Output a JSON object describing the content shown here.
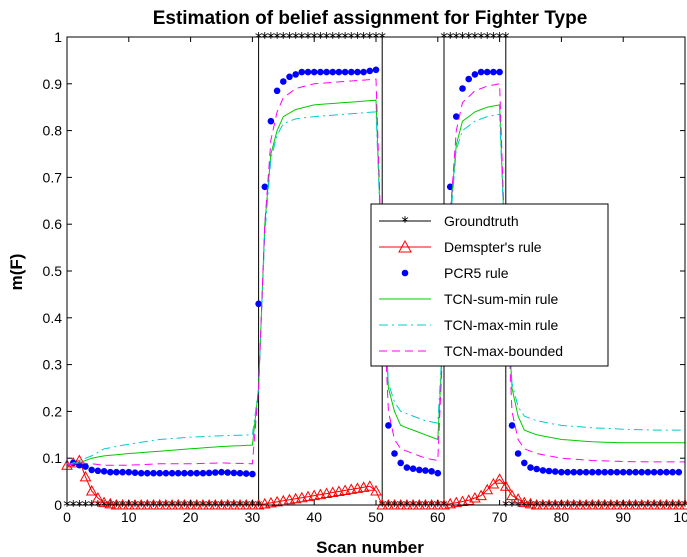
{
  "chart_data": {
    "type": "line",
    "title": "Estimation of belief assignment for Fighter Type",
    "xlabel": "Scan number",
    "ylabel": "m(F)",
    "xlim": [
      0,
      100
    ],
    "ylim": [
      0,
      1
    ],
    "xticks": [
      0,
      10,
      20,
      30,
      40,
      50,
      60,
      70,
      80,
      90,
      100
    ],
    "yticks": [
      0,
      0.1,
      0.2,
      0.3,
      0.4,
      0.5,
      0.6,
      0.7,
      0.8,
      0.9,
      1
    ],
    "grid": false,
    "legend_position": "center-right",
    "series": [
      {
        "name": "Groundtruth",
        "color": "#000000",
        "style": "solid+star",
        "segments": [
          {
            "x": [
              0,
              31
            ],
            "y": 0
          },
          {
            "x": [
              31,
              51
            ],
            "y": 1
          },
          {
            "x": [
              51,
              61
            ],
            "y": 0
          },
          {
            "x": [
              61,
              71
            ],
            "y": 1
          },
          {
            "x": [
              71,
              100
            ],
            "y": 0
          }
        ]
      },
      {
        "name": "Demspter's rule",
        "color": "#ff0000",
        "style": "solid+triangle",
        "points": [
          [
            0,
            0.085
          ],
          [
            1,
            0.09
          ],
          [
            2,
            0.095
          ],
          [
            3,
            0.06
          ],
          [
            4,
            0.03
          ],
          [
            5,
            0.015
          ],
          [
            6,
            0.005
          ],
          [
            8,
            0.0
          ],
          [
            30,
            0.0
          ],
          [
            31,
            0.0
          ],
          [
            49,
            0.04
          ],
          [
            50,
            0.03
          ],
          [
            51,
            0.0
          ],
          [
            60,
            0.0
          ],
          [
            61,
            0.0
          ],
          [
            65,
            0.01
          ],
          [
            67,
            0.02
          ],
          [
            69,
            0.045
          ],
          [
            70,
            0.055
          ],
          [
            71,
            0.04
          ],
          [
            72,
            0.02
          ],
          [
            74,
            0.005
          ],
          [
            76,
            0.0
          ],
          [
            100,
            0.0
          ]
        ]
      },
      {
        "name": "PCR5 rule",
        "color": "#0000ff",
        "style": "dots",
        "points": [
          [
            0,
            0.085
          ],
          [
            1,
            0.09
          ],
          [
            2,
            0.085
          ],
          [
            3,
            0.082
          ],
          [
            4,
            0.075
          ],
          [
            5,
            0.073
          ],
          [
            6,
            0.072
          ],
          [
            7,
            0.07
          ],
          [
            8,
            0.07
          ],
          [
            10,
            0.07
          ],
          [
            12,
            0.068
          ],
          [
            15,
            0.068
          ],
          [
            18,
            0.068
          ],
          [
            20,
            0.068
          ],
          [
            22,
            0.068
          ],
          [
            25,
            0.07
          ],
          [
            28,
            0.068
          ],
          [
            30,
            0.066
          ],
          [
            31,
            0.43
          ],
          [
            32,
            0.68
          ],
          [
            33,
            0.82
          ],
          [
            34,
            0.885
          ],
          [
            35,
            0.905
          ],
          [
            36,
            0.915
          ],
          [
            37,
            0.92
          ],
          [
            38,
            0.925
          ],
          [
            40,
            0.925
          ],
          [
            42,
            0.925
          ],
          [
            45,
            0.925
          ],
          [
            48,
            0.925
          ],
          [
            50,
            0.93
          ],
          [
            51,
            0.57
          ],
          [
            52,
            0.17
          ],
          [
            53,
            0.11
          ],
          [
            54,
            0.09
          ],
          [
            55,
            0.08
          ],
          [
            57,
            0.075
          ],
          [
            59,
            0.072
          ],
          [
            60,
            0.068
          ],
          [
            61,
            0.42
          ],
          [
            62,
            0.68
          ],
          [
            63,
            0.83
          ],
          [
            64,
            0.89
          ],
          [
            65,
            0.91
          ],
          [
            66,
            0.92
          ],
          [
            67,
            0.925
          ],
          [
            68,
            0.925
          ],
          [
            70,
            0.925
          ],
          [
            71,
            0.56
          ],
          [
            72,
            0.17
          ],
          [
            73,
            0.11
          ],
          [
            74,
            0.09
          ],
          [
            75,
            0.08
          ],
          [
            77,
            0.074
          ],
          [
            80,
            0.07
          ],
          [
            85,
            0.07
          ],
          [
            90,
            0.07
          ],
          [
            95,
            0.07
          ],
          [
            100,
            0.07
          ]
        ]
      },
      {
        "name": "TCN-sum-min rule",
        "color": "#00cc00",
        "style": "solid",
        "points": [
          [
            0,
            0.085
          ],
          [
            2,
            0.09
          ],
          [
            4,
            0.1
          ],
          [
            6,
            0.105
          ],
          [
            10,
            0.11
          ],
          [
            15,
            0.115
          ],
          [
            20,
            0.12
          ],
          [
            25,
            0.125
          ],
          [
            30,
            0.128
          ],
          [
            31,
            0.25
          ],
          [
            32,
            0.6
          ],
          [
            33,
            0.75
          ],
          [
            34,
            0.8
          ],
          [
            35,
            0.83
          ],
          [
            37,
            0.845
          ],
          [
            40,
            0.855
          ],
          [
            45,
            0.86
          ],
          [
            50,
            0.865
          ],
          [
            51,
            0.5
          ],
          [
            52,
            0.25
          ],
          [
            53,
            0.2
          ],
          [
            54,
            0.17
          ],
          [
            56,
            0.16
          ],
          [
            58,
            0.15
          ],
          [
            60,
            0.14
          ],
          [
            61,
            0.4
          ],
          [
            62,
            0.62
          ],
          [
            63,
            0.77
          ],
          [
            64,
            0.82
          ],
          [
            66,
            0.84
          ],
          [
            68,
            0.85
          ],
          [
            70,
            0.855
          ],
          [
            71,
            0.5
          ],
          [
            72,
            0.25
          ],
          [
            73,
            0.19
          ],
          [
            74,
            0.16
          ],
          [
            76,
            0.15
          ],
          [
            80,
            0.14
          ],
          [
            85,
            0.135
          ],
          [
            90,
            0.133
          ],
          [
            95,
            0.133
          ],
          [
            100,
            0.133
          ]
        ]
      },
      {
        "name": "TCN-max-min rule",
        "color": "#00cccc",
        "style": "dashdot",
        "points": [
          [
            0,
            0.085
          ],
          [
            2,
            0.095
          ],
          [
            4,
            0.105
          ],
          [
            6,
            0.12
          ],
          [
            10,
            0.13
          ],
          [
            15,
            0.14
          ],
          [
            20,
            0.145
          ],
          [
            25,
            0.148
          ],
          [
            30,
            0.15
          ],
          [
            31,
            0.25
          ],
          [
            32,
            0.58
          ],
          [
            33,
            0.74
          ],
          [
            34,
            0.79
          ],
          [
            35,
            0.815
          ],
          [
            37,
            0.825
          ],
          [
            40,
            0.83
          ],
          [
            45,
            0.835
          ],
          [
            50,
            0.84
          ],
          [
            51,
            0.5
          ],
          [
            52,
            0.26
          ],
          [
            53,
            0.22
          ],
          [
            54,
            0.2
          ],
          [
            56,
            0.19
          ],
          [
            58,
            0.18
          ],
          [
            60,
            0.175
          ],
          [
            61,
            0.4
          ],
          [
            62,
            0.6
          ],
          [
            63,
            0.76
          ],
          [
            64,
            0.8
          ],
          [
            66,
            0.82
          ],
          [
            68,
            0.83
          ],
          [
            70,
            0.835
          ],
          [
            71,
            0.5
          ],
          [
            72,
            0.26
          ],
          [
            73,
            0.21
          ],
          [
            74,
            0.19
          ],
          [
            76,
            0.18
          ],
          [
            80,
            0.17
          ],
          [
            85,
            0.165
          ],
          [
            90,
            0.162
          ],
          [
            95,
            0.16
          ],
          [
            100,
            0.16
          ]
        ]
      },
      {
        "name": "TCN-max-bounded",
        "color": "#ff00ff",
        "style": "dashed",
        "points": [
          [
            0,
            0.085
          ],
          [
            2,
            0.09
          ],
          [
            4,
            0.088
          ],
          [
            6,
            0.085
          ],
          [
            10,
            0.085
          ],
          [
            15,
            0.088
          ],
          [
            20,
            0.088
          ],
          [
            25,
            0.09
          ],
          [
            30,
            0.088
          ],
          [
            31,
            0.25
          ],
          [
            32,
            0.6
          ],
          [
            33,
            0.78
          ],
          [
            34,
            0.84
          ],
          [
            35,
            0.87
          ],
          [
            37,
            0.89
          ],
          [
            40,
            0.9
          ],
          [
            45,
            0.905
          ],
          [
            50,
            0.91
          ],
          [
            51,
            0.5
          ],
          [
            52,
            0.2
          ],
          [
            53,
            0.14
          ],
          [
            54,
            0.12
          ],
          [
            56,
            0.11
          ],
          [
            58,
            0.1
          ],
          [
            60,
            0.095
          ],
          [
            61,
            0.4
          ],
          [
            62,
            0.62
          ],
          [
            63,
            0.8
          ],
          [
            64,
            0.86
          ],
          [
            66,
            0.885
          ],
          [
            68,
            0.895
          ],
          [
            70,
            0.9
          ],
          [
            71,
            0.5
          ],
          [
            72,
            0.2
          ],
          [
            73,
            0.14
          ],
          [
            74,
            0.12
          ],
          [
            76,
            0.11
          ],
          [
            80,
            0.1
          ],
          [
            85,
            0.095
          ],
          [
            90,
            0.093
          ],
          [
            95,
            0.092
          ],
          [
            100,
            0.092
          ]
        ]
      }
    ]
  }
}
